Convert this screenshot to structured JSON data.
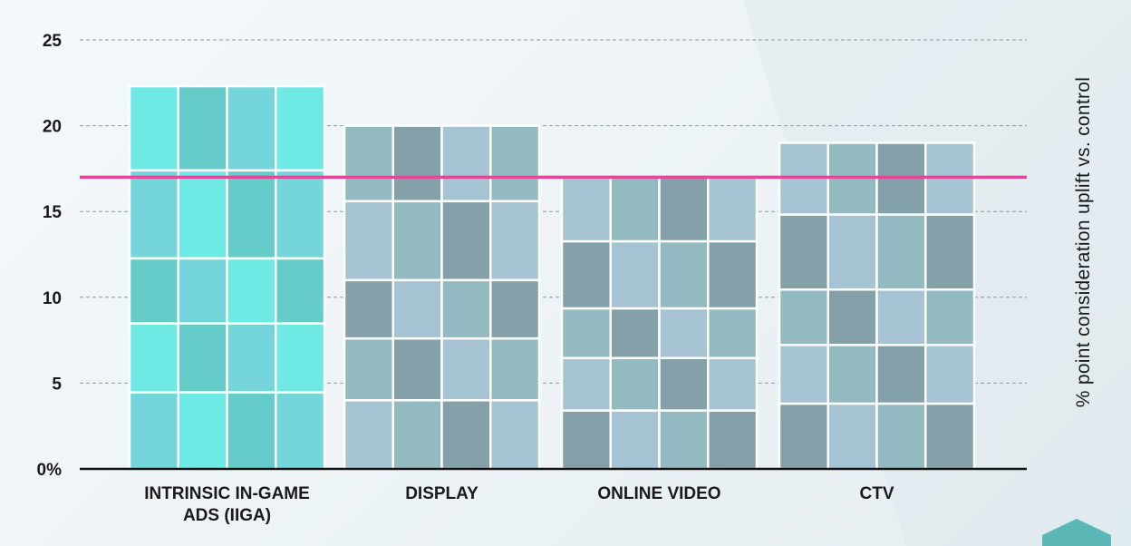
{
  "chart_data": {
    "type": "bar",
    "categories": [
      "INTRINSIC IN-GAME ADS (IIGA)",
      "DISPLAY",
      "ONLINE VIDEO",
      "CTV"
    ],
    "category_lines": [
      [
        "INTRINSIC IN-GAME",
        "ADS (IIGA)"
      ],
      [
        "DISPLAY"
      ],
      [
        "ONLINE VIDEO"
      ],
      [
        "CTV"
      ]
    ],
    "values": [
      22.3,
      20.0,
      17.0,
      19.0
    ],
    "reference_line": {
      "value": 17,
      "color": "#e0489c"
    },
    "ylabel": "% point consideration uplift vs. control",
    "ylim": [
      0,
      25
    ],
    "yticks": [
      0,
      5,
      10,
      15,
      20,
      25
    ],
    "ytick_labels": [
      "0%",
      "5",
      "10",
      "15",
      "20",
      "25"
    ],
    "grid": true,
    "ylabel_position": "right",
    "bar_colors": [
      [
        "#6fe9e4",
        "#66ccc9",
        "#74d6da"
      ],
      [
        "#a5c3d2",
        "#94bac1",
        "#84a0a9"
      ],
      [
        "#94bac1",
        "#84a0a9",
        "#a5c3d2"
      ],
      [
        "#a5c3d2",
        "#94bac1",
        "#84a0a9"
      ]
    ],
    "style": "tetris-block bars"
  }
}
